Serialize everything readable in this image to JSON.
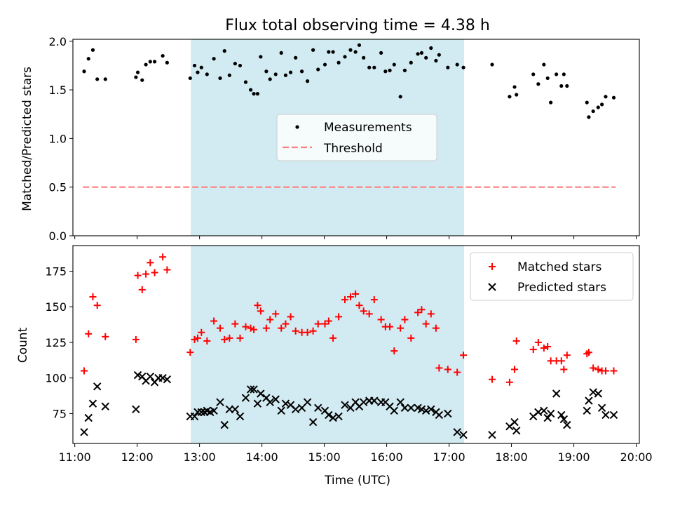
{
  "chart_data": [
    {
      "type": "scatter",
      "title": "Flux total observing time = 4.38 h",
      "xlabel": "",
      "ylabel": "Matched/Predicted stars",
      "xlim": [
        10.97,
        20.05
      ],
      "ylim": [
        0,
        2.02
      ],
      "yticks": [
        0.0,
        0.5,
        1.0,
        1.5,
        2.0
      ],
      "ytick_labels": [
        "0.0",
        "0.5",
        "1.0",
        "1.5",
        "2.0"
      ],
      "xticks": [
        11,
        12,
        13,
        14,
        15,
        16,
        17,
        18,
        19,
        20
      ],
      "grid": false,
      "legend_position": "center",
      "shaded_span": {
        "x0": 12.86,
        "x1": 17.24,
        "color": "#add8e6"
      },
      "threshold": {
        "label": "Threshold",
        "value": 0.5,
        "x0": 11.13,
        "x1": 19.67,
        "color": "#ff7f7f",
        "style": "dashed"
      },
      "series": [
        {
          "name": "Measurements",
          "color": "#000000",
          "marker": "dot",
          "x": [
            11.15,
            11.22,
            11.29,
            11.36,
            11.49,
            11.98,
            12.01,
            12.08,
            12.14,
            12.21,
            12.28,
            12.41,
            12.48,
            12.85,
            12.92,
            12.97,
            13.03,
            13.12,
            13.23,
            13.33,
            13.4,
            13.48,
            13.57,
            13.65,
            13.74,
            13.82,
            13.87,
            13.93,
            13.98,
            14.07,
            14.13,
            14.22,
            14.31,
            14.38,
            14.46,
            14.54,
            14.64,
            14.73,
            14.82,
            14.9,
            15.01,
            15.07,
            15.14,
            15.23,
            15.33,
            15.42,
            15.5,
            15.56,
            15.63,
            15.72,
            15.8,
            15.91,
            15.98,
            16.05,
            16.12,
            16.22,
            16.29,
            16.39,
            16.5,
            16.56,
            16.63,
            16.71,
            16.79,
            16.84,
            16.98,
            17.13,
            17.23,
            17.69,
            17.97,
            18.05,
            18.08,
            18.35,
            18.43,
            18.52,
            18.58,
            18.63,
            18.72,
            18.8,
            18.84,
            18.89,
            19.21,
            19.24,
            19.31,
            19.39,
            19.45,
            19.51,
            19.64
          ],
          "y": [
            1.69,
            1.82,
            1.91,
            1.61,
            1.61,
            1.63,
            1.68,
            1.6,
            1.76,
            1.79,
            1.79,
            1.85,
            1.78,
            1.62,
            1.75,
            1.68,
            1.73,
            1.66,
            1.82,
            1.62,
            1.9,
            1.65,
            1.77,
            1.75,
            1.58,
            1.5,
            1.46,
            1.46,
            1.84,
            1.69,
            1.61,
            1.66,
            1.88,
            1.65,
            1.68,
            1.83,
            1.69,
            1.59,
            1.91,
            1.71,
            1.76,
            1.89,
            1.89,
            1.78,
            1.84,
            1.91,
            1.89,
            1.96,
            1.83,
            1.73,
            1.73,
            1.88,
            1.69,
            1.7,
            1.76,
            1.43,
            1.7,
            1.78,
            1.87,
            1.88,
            1.83,
            1.93,
            1.8,
            1.86,
            1.73,
            1.76,
            1.73,
            1.76,
            1.43,
            1.53,
            1.45,
            1.66,
            1.56,
            1.76,
            1.62,
            1.37,
            1.66,
            1.54,
            1.66,
            1.54,
            1.37,
            1.22,
            1.28,
            1.32,
            1.35,
            1.43,
            1.42
          ]
        }
      ]
    },
    {
      "type": "scatter",
      "xlabel": "Time (UTC)",
      "ylabel": "Count",
      "xlim": [
        10.97,
        20.05
      ],
      "ylim": [
        54,
        193
      ],
      "yticks": [
        75,
        100,
        125,
        150,
        175
      ],
      "xticks": [
        11,
        12,
        13,
        14,
        15,
        16,
        17,
        18,
        19,
        20
      ],
      "xtick_labels": [
        "11:00",
        "12:00",
        "13:00",
        "14:00",
        "15:00",
        "16:00",
        "17:00",
        "18:00",
        "19:00",
        "20:00"
      ],
      "grid": false,
      "legend_position": "top-right",
      "shaded_span": {
        "x0": 12.86,
        "x1": 17.24,
        "color": "#add8e6"
      },
      "series": [
        {
          "name": "Matched stars",
          "color": "#ff0000",
          "marker": "plus",
          "x": [
            11.15,
            11.22,
            11.29,
            11.36,
            11.49,
            11.98,
            12.01,
            12.08,
            12.14,
            12.21,
            12.28,
            12.41,
            12.48,
            12.85,
            12.92,
            12.97,
            13.03,
            13.12,
            13.23,
            13.33,
            13.4,
            13.48,
            13.57,
            13.65,
            13.74,
            13.82,
            13.87,
            13.93,
            13.98,
            14.07,
            14.13,
            14.22,
            14.31,
            14.38,
            14.46,
            14.54,
            14.64,
            14.73,
            14.82,
            14.9,
            15.01,
            15.07,
            15.14,
            15.23,
            15.33,
            15.42,
            15.5,
            15.56,
            15.63,
            15.72,
            15.8,
            15.91,
            15.98,
            16.05,
            16.12,
            16.22,
            16.29,
            16.39,
            16.5,
            16.56,
            16.63,
            16.71,
            16.79,
            16.84,
            16.98,
            17.13,
            17.23,
            17.69,
            17.97,
            18.05,
            18.08,
            18.35,
            18.43,
            18.52,
            18.58,
            18.63,
            18.72,
            18.8,
            18.84,
            18.89,
            19.21,
            19.24,
            19.31,
            19.39,
            19.45,
            19.51,
            19.64
          ],
          "y": [
            105,
            131,
            157,
            151,
            129,
            127,
            172,
            162,
            173,
            181,
            174,
            185,
            176,
            118,
            127,
            128,
            132,
            126,
            140,
            135,
            127,
            128,
            138,
            128,
            136,
            135,
            134,
            151,
            147,
            135,
            141,
            145,
            135,
            138,
            143,
            133,
            132,
            132,
            133,
            138,
            138,
            140,
            128,
            143,
            155,
            157,
            159,
            151,
            147,
            145,
            155,
            141,
            136,
            136,
            119,
            135,
            141,
            128,
            146,
            148,
            138,
            145,
            135,
            107,
            106,
            104,
            116,
            99,
            97,
            106,
            126,
            120,
            125,
            121,
            122,
            112,
            112,
            112,
            106,
            116,
            117,
            118,
            107,
            106,
            105,
            105,
            105
          ]
        },
        {
          "name": "Predicted stars",
          "color": "#000000",
          "marker": "x",
          "x": [
            11.15,
            11.22,
            11.29,
            11.36,
            11.49,
            11.98,
            12.01,
            12.08,
            12.14,
            12.21,
            12.28,
            12.34,
            12.41,
            12.48,
            12.85,
            12.92,
            12.97,
            13.03,
            13.08,
            13.12,
            13.17,
            13.23,
            13.33,
            13.4,
            13.48,
            13.57,
            13.65,
            13.74,
            13.82,
            13.87,
            13.93,
            13.98,
            14.07,
            14.13,
            14.22,
            14.31,
            14.38,
            14.46,
            14.54,
            14.64,
            14.73,
            14.82,
            14.9,
            15.01,
            15.07,
            15.14,
            15.23,
            15.33,
            15.42,
            15.5,
            15.56,
            15.63,
            15.72,
            15.8,
            15.91,
            15.98,
            16.05,
            16.12,
            16.22,
            16.29,
            16.39,
            16.5,
            16.56,
            16.63,
            16.71,
            16.79,
            16.84,
            16.98,
            17.13,
            17.23,
            17.69,
            17.97,
            18.05,
            18.08,
            18.35,
            18.43,
            18.52,
            18.58,
            18.63,
            18.72,
            18.8,
            18.84,
            18.89,
            19.21,
            19.24,
            19.31,
            19.39,
            19.45,
            19.51,
            19.64
          ],
          "y": [
            62,
            72,
            82,
            94,
            80,
            78,
            102,
            101,
            98,
            101,
            97,
            100,
            100,
            99,
            73,
            73,
            76,
            76,
            76,
            77,
            76,
            77,
            83,
            67,
            78,
            78,
            73,
            86,
            92,
            92,
            82,
            89,
            86,
            83,
            85,
            77,
            82,
            81,
            78,
            79,
            83,
            69,
            79,
            77,
            74,
            72,
            73,
            81,
            79,
            83,
            80,
            83,
            84,
            84,
            83,
            83,
            80,
            77,
            83,
            79,
            79,
            79,
            78,
            77,
            78,
            76,
            74,
            75,
            62,
            60,
            60,
            66,
            69,
            63,
            73,
            76,
            77,
            72,
            75,
            89,
            74,
            71,
            67,
            77,
            84,
            90,
            89,
            79,
            74,
            74
          ]
        }
      ]
    }
  ]
}
